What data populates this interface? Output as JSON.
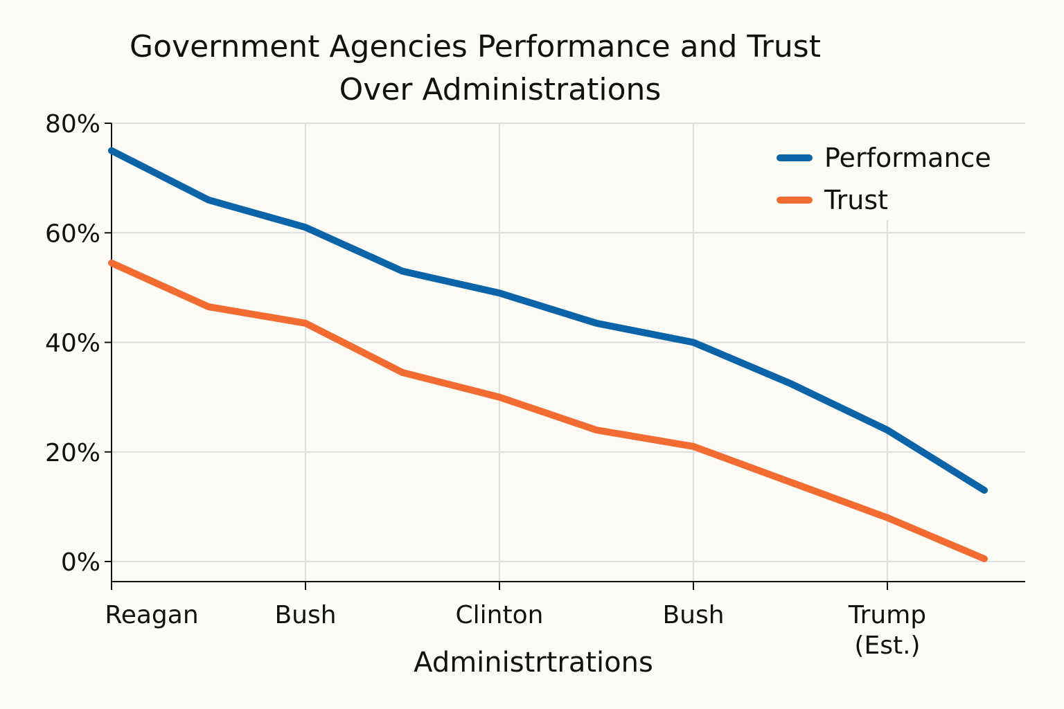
{
  "chart_data": {
    "type": "line",
    "title_lines": [
      "Government Agencies Performance and Trust",
      "Over Administrations"
    ],
    "xlabel": "Administrtrations",
    "ylabel": "",
    "x": [
      0,
      0.5,
      1,
      1.5,
      2,
      2.5,
      3,
      3.5,
      4,
      4.5
    ],
    "xlim": [
      0,
      4.5
    ],
    "ylim": [
      0,
      80
    ],
    "yticks": [
      0,
      20,
      40,
      60,
      80
    ],
    "ytick_labels": [
      "0%",
      "20%",
      "40%",
      "60%",
      "80%"
    ],
    "xticks": [
      {
        "x": 0,
        "lines": [
          "Reagan"
        ]
      },
      {
        "x": 1,
        "lines": [
          "Bush"
        ]
      },
      {
        "x": 2,
        "lines": [
          "Clinton"
        ]
      },
      {
        "x": 3,
        "lines": [
          "Bush"
        ]
      },
      {
        "x": 4,
        "lines": [
          "Trump",
          "(Est.)"
        ]
      }
    ],
    "series": [
      {
        "name": "Performance",
        "color": "#0b64a8",
        "values": [
          75,
          66,
          61,
          53,
          49,
          43.5,
          40,
          32.5,
          24,
          13
        ]
      },
      {
        "name": "Trust",
        "color": "#f26b30",
        "values": [
          54.5,
          46.5,
          43.5,
          34.5,
          30,
          24,
          21,
          14.5,
          8,
          0.5
        ]
      }
    ],
    "grid": true,
    "legend": "top-right"
  }
}
